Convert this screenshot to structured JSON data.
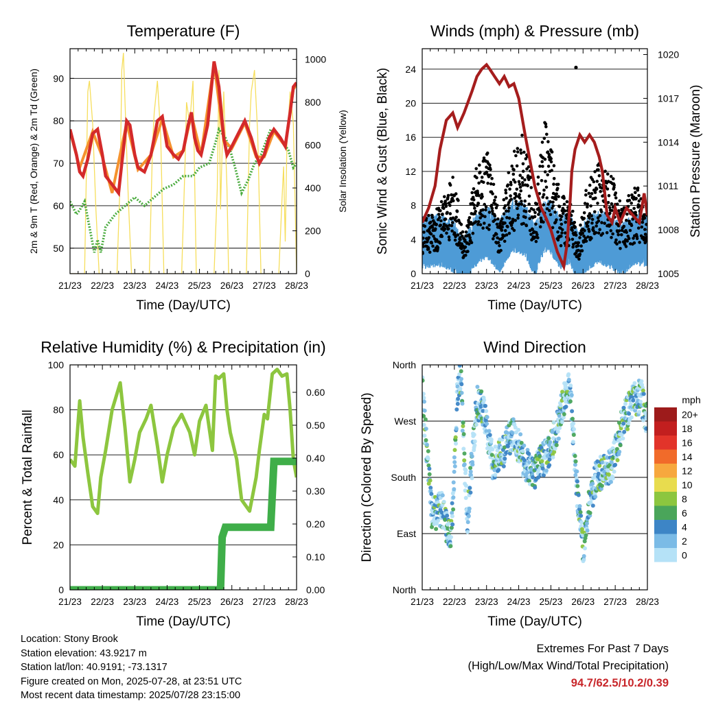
{
  "panels": {
    "temperature": {
      "title": "Temperature (F)",
      "ylabel_left": "2m & 9m T (Red, Orange) & 2m Td (Green)",
      "ylabel_right": "Solar Insolation (Yellow)",
      "xlabel": "Time (Day/UTC)"
    },
    "winds": {
      "title": "Winds (mph) & Pressure (mb)",
      "ylabel_left": "Sonic Wind & Gust (Blue, Black)",
      "ylabel_right": "Station Pressure (Maroon)",
      "xlabel": "Time (Day/UTC)"
    },
    "humidity": {
      "title": "Relative Humidity (%) & Precipitation (in)",
      "ylabel_left": "Percent & Total Rainfall",
      "xlabel": "Time (Day/UTC)"
    },
    "direction": {
      "title": "Wind Direction",
      "ylabel_left": "Direction (Colored By Speed)",
      "xlabel": "Time (Day/UTC)",
      "legend_title": "mph"
    }
  },
  "info": {
    "location": "Location: Stony Brook",
    "elevation": "Station elevation: 43.9217 m",
    "latlon": "Station lat/lon: 40.9191; -73.1317",
    "created": "Figure created on Mon, 2025-07-28, at 23:51 UTC",
    "recent": "Most recent data timestamp: 2025/07/28 23:15:00"
  },
  "extremes": {
    "line1": "Extremes For Past 7 Days",
    "line2": "(High/Low/Max Wind/Total Precipitation)",
    "values": "94.7/62.5/10.2/0.39"
  },
  "colors": {
    "temp_2m": "#d42a2a",
    "temp_9m": "#f5922e",
    "dewpoint": "#4aab3e",
    "solar": "#f6de5c",
    "wind": "#4e9bd6",
    "gust": "#000000",
    "pressure": "#a51d1d",
    "rh": "#8dc63f",
    "precip": "#3fae49"
  },
  "chart_data": [
    {
      "type": "line",
      "title": "Temperature (F)",
      "xlabel": "Time (Day/UTC)",
      "ylabel": "2m & 9m T (Red, Orange) & 2m Td (Green)",
      "ylabel_right": "Solar Insolation (Yellow)",
      "x_ticks": [
        "21/23",
        "22/23",
        "23/23",
        "24/23",
        "25/23",
        "26/23",
        "27/23",
        "28/23"
      ],
      "y_ticks": [
        50,
        60,
        70,
        80,
        90
      ],
      "y_right_ticks": [
        0,
        200,
        400,
        800,
        1000
      ],
      "ylim": [
        44,
        97
      ],
      "ylim_right": [
        0,
        1050
      ],
      "series": [
        {
          "name": "2m T",
          "color": "#d42a2a",
          "x": [
            0,
            0.1,
            0.2,
            0.3,
            0.4,
            0.55,
            0.7,
            0.85,
            1.0,
            1.1,
            1.3,
            1.5,
            1.6,
            1.75,
            1.85,
            2.0,
            2.1,
            2.3,
            2.5,
            2.7,
            2.85,
            3.0,
            3.2,
            3.35,
            3.5,
            3.65,
            3.75,
            3.85,
            3.95,
            4.05,
            4.25,
            4.45,
            4.6,
            4.75,
            4.85,
            5.0,
            5.2,
            5.4,
            5.6,
            5.75,
            5.85,
            6.0,
            6.15,
            6.3,
            6.5,
            6.65,
            6.8,
            6.9,
            7.0
          ],
          "y": [
            78,
            75,
            72,
            68,
            67,
            71,
            77,
            78,
            72,
            67,
            65,
            63,
            70,
            80,
            79,
            72,
            69,
            68,
            72,
            80,
            81,
            74,
            72,
            71,
            73,
            79,
            82,
            76,
            73,
            72,
            79,
            94,
            88,
            76,
            72,
            74,
            77,
            80,
            76,
            72,
            70,
            72,
            76,
            78,
            76,
            74,
            82,
            88,
            89
          ]
        },
        {
          "name": "9m T",
          "color": "#f5922e",
          "x": [
            0,
            0.3,
            0.7,
            1.0,
            1.3,
            1.75,
            2.1,
            2.5,
            2.85,
            3.2,
            3.5,
            3.75,
            4.05,
            4.45,
            4.75,
            5.0,
            5.4,
            5.75,
            6.0,
            6.3,
            6.65,
            6.9,
            7.0
          ],
          "y": [
            77.5,
            69,
            77.5,
            71.5,
            63,
            79.5,
            68.5,
            72,
            80.5,
            71.5,
            73,
            81.5,
            72,
            93.5,
            75.5,
            73.5,
            79.5,
            71.5,
            71.5,
            77.5,
            74,
            87.5,
            88.5
          ]
        },
        {
          "name": "2m Td",
          "color": "#4aab3e",
          "x": [
            0,
            0.2,
            0.3,
            0.45,
            0.6,
            0.75,
            0.85,
            0.95,
            1.1,
            1.4,
            1.7,
            2.0,
            2.3,
            2.6,
            2.9,
            3.2,
            3.5,
            3.8,
            4.0,
            4.3,
            4.5,
            4.6,
            4.8,
            4.95,
            5.1,
            5.3,
            5.5,
            5.7,
            5.9,
            6.2,
            6.5,
            6.75,
            6.9,
            7.0
          ],
          "y": [
            61,
            58,
            59,
            61,
            55,
            49,
            52,
            49,
            55,
            58,
            60,
            62,
            60,
            62,
            64,
            65,
            67,
            67,
            69,
            70,
            75,
            78,
            76,
            73,
            69,
            63,
            66,
            70,
            72,
            78,
            76,
            73,
            69,
            70
          ]
        },
        {
          "name": "Solar",
          "axis": "right",
          "color": "#f6de5c",
          "x": [
            0,
            0.45,
            0.55,
            0.6,
            0.7,
            0.8,
            0.9,
            1.45,
            1.55,
            1.6,
            1.65,
            1.7,
            1.8,
            1.9,
            2.45,
            2.55,
            2.6,
            2.7,
            2.8,
            2.9,
            3.45,
            3.55,
            3.6,
            3.7,
            3.8,
            3.9,
            4.45,
            4.55,
            4.6,
            4.65,
            4.75,
            4.85,
            4.9,
            5.45,
            5.55,
            5.6,
            5.7,
            5.8,
            5.9,
            6.45,
            6.55,
            6.6,
            6.65,
            6.7,
            6.8,
            6.9,
            7.0
          ],
          "y": [
            0,
            0,
            850,
            900,
            700,
            300,
            0,
            0,
            450,
            950,
            1030,
            800,
            350,
            0,
            0,
            600,
            750,
            900,
            650,
            0,
            0,
            500,
            800,
            700,
            900,
            0,
            0,
            400,
            950,
            300,
            850,
            400,
            0,
            0,
            700,
            850,
            950,
            650,
            0,
            0,
            350,
            500,
            150,
            600,
            850,
            700,
            0
          ]
        }
      ]
    },
    {
      "type": "scatter",
      "title": "Winds (mph) & Pressure (mb)",
      "xlabel": "Time (Day/UTC)",
      "ylabel": "Sonic Wind & Gust (Blue, Black)",
      "ylabel_right": "Station Pressure (Maroon)",
      "x_ticks": [
        "21/23",
        "22/23",
        "23/23",
        "24/23",
        "25/23",
        "26/23",
        "27/23",
        "28/23"
      ],
      "y_ticks": [
        0,
        4,
        8,
        12,
        16,
        20,
        24
      ],
      "y_right_ticks": [
        1005,
        1008,
        1011,
        1014,
        1017,
        1020
      ],
      "ylim": [
        0,
        26.4
      ],
      "ylim_right": [
        1005,
        1020.4
      ],
      "series": [
        {
          "name": "Sonic Wind",
          "color": "#4e9bd6",
          "x": [
            0,
            0.5,
            1.0,
            1.3,
            1.6,
            2.0,
            2.4,
            2.8,
            3.2,
            3.5,
            3.8,
            4.0,
            4.3,
            4.6,
            4.85,
            5.1,
            5.5,
            5.9,
            6.2,
            6.6,
            7.0
          ],
          "y": [
            3.5,
            3.8,
            3.0,
            1.0,
            3.5,
            4.8,
            3.0,
            5.5,
            5.0,
            2.5,
            5.5,
            5.2,
            3.5,
            4.0,
            1.5,
            3.2,
            4.2,
            3.4,
            2.6,
            4.0,
            3.6
          ]
        },
        {
          "name": "Gust",
          "color": "#000000",
          "x": [
            0,
            0.5,
            1.0,
            1.3,
            1.6,
            2.0,
            2.4,
            2.8,
            3.2,
            3.5,
            3.8,
            4.0,
            4.3,
            4.6,
            4.85,
            5.1,
            5.5,
            5.9,
            6.2,
            6.6,
            7.0
          ],
          "y": [
            5,
            6,
            9,
            3,
            9,
            12,
            5,
            11,
            13,
            6,
            14,
            12,
            7,
            7,
            3,
            8,
            10,
            9,
            6,
            8,
            7
          ]
        },
        {
          "name": "Pressure",
          "axis": "right",
          "color": "#a51d1d",
          "x": [
            0,
            0.2,
            0.4,
            0.55,
            0.75,
            0.95,
            1.1,
            1.3,
            1.55,
            1.7,
            1.85,
            2.0,
            2.1,
            2.25,
            2.4,
            2.55,
            2.7,
            2.85,
            3.0,
            3.2,
            3.5,
            3.7,
            3.85,
            4.0,
            4.2,
            4.4,
            4.5,
            4.6,
            4.65,
            4.75,
            4.9,
            5.05,
            5.2,
            5.35,
            5.5,
            5.6,
            5.75,
            5.9,
            6.0,
            6.15,
            6.35,
            6.55,
            6.75,
            6.9,
            7.0
          ],
          "y": [
            1008.5,
            1009.5,
            1011,
            1013.5,
            1015.5,
            1016,
            1015,
            1016,
            1017.5,
            1018.5,
            1019,
            1019.3,
            1019,
            1018.5,
            1018,
            1018.5,
            1017.8,
            1018,
            1017,
            1014.5,
            1011,
            1009.5,
            1008.8,
            1008,
            1006.5,
            1005.5,
            1007,
            1010,
            1012,
            1013.5,
            1014.5,
            1014,
            1014.5,
            1014,
            1013,
            1012,
            1009,
            1008.5,
            1009.5,
            1008.5,
            1009.5,
            1009,
            1008.5,
            1010.5,
            1009
          ]
        }
      ]
    },
    {
      "type": "line",
      "title": "Relative Humidity (%) & Precipitation (in)",
      "xlabel": "Time (Day/UTC)",
      "ylabel": "Percent & Total Rainfall",
      "x_ticks": [
        "21/23",
        "22/23",
        "23/23",
        "24/23",
        "25/23",
        "26/23",
        "27/23",
        "28/23"
      ],
      "y_ticks": [
        0,
        20,
        40,
        60,
        80,
        100
      ],
      "y_right_ticks": [
        0.0,
        0.1,
        0.2,
        0.3,
        0.4,
        0.5,
        0.6
      ],
      "ylim": [
        0,
        100
      ],
      "ylim_right": [
        0,
        0.6833
      ],
      "series": [
        {
          "name": "Relative Humidity",
          "color": "#8dc63f",
          "x": [
            0,
            0.15,
            0.3,
            0.4,
            0.55,
            0.7,
            0.85,
            0.95,
            1.1,
            1.3,
            1.55,
            1.7,
            1.85,
            2.0,
            2.15,
            2.35,
            2.5,
            2.7,
            2.85,
            3.0,
            3.2,
            3.45,
            3.7,
            3.85,
            4.0,
            4.2,
            4.4,
            4.5,
            4.6,
            4.75,
            4.85,
            4.95,
            5.15,
            5.3,
            5.55,
            5.75,
            5.85,
            6.0,
            6.1,
            6.25,
            6.4,
            6.55,
            6.7,
            6.8,
            6.9,
            7.0
          ],
          "y": [
            58,
            55,
            84,
            68,
            52,
            37,
            34,
            50,
            62,
            80,
            92,
            72,
            48,
            58,
            70,
            76,
            82,
            64,
            48,
            60,
            72,
            78,
            70,
            60,
            75,
            82,
            62,
            95,
            94,
            96,
            80,
            70,
            58,
            40,
            35,
            50,
            62,
            78,
            76,
            96,
            98,
            95,
            96,
            80,
            58,
            50
          ]
        },
        {
          "name": "Total Rainfall",
          "axis": "right",
          "color": "#3fae49",
          "x": [
            0,
            4.65,
            4.7,
            4.8,
            6.2,
            6.3,
            6.35,
            7.0
          ],
          "y": [
            0.0,
            0.0,
            0.16,
            0.19,
            0.19,
            0.39,
            0.39,
            0.39
          ]
        }
      ]
    },
    {
      "type": "scatter",
      "title": "Wind Direction",
      "xlabel": "Time (Day/UTC)",
      "ylabel": "Direction (Colored By Speed)",
      "x_ticks": [
        "21/23",
        "22/23",
        "23/23",
        "24/23",
        "25/23",
        "26/23",
        "27/23",
        "28/23"
      ],
      "y_ticks": [
        "North",
        "East",
        "South",
        "West",
        "North"
      ],
      "ylim": [
        0,
        360
      ],
      "colorbar": {
        "title": "mph",
        "labels": [
          "0",
          "2",
          "4",
          "6",
          "8",
          "10",
          "12",
          "14",
          "16",
          "18",
          "20+"
        ]
      },
      "series": [
        {
          "name": "Direction",
          "x": [
            0,
            0.3,
            0.6,
            0.9,
            1.1,
            1.2,
            1.4,
            1.7,
            1.9,
            2.2,
            2.5,
            2.8,
            3.0,
            3.2,
            3.5,
            3.8,
            4.0,
            4.2,
            4.4,
            4.6,
            4.8,
            5.0,
            5.2,
            5.4,
            5.6,
            5.9,
            6.2,
            6.5,
            6.8,
            7.0
          ],
          "y": [
            320,
            120,
            130,
            80,
            320,
            340,
            110,
            300,
            290,
            200,
            220,
            250,
            230,
            200,
            190,
            210,
            230,
            260,
            300,
            330,
            170,
            60,
            140,
            180,
            190,
            200,
            260,
            300,
            310,
            270
          ]
        }
      ]
    }
  ]
}
